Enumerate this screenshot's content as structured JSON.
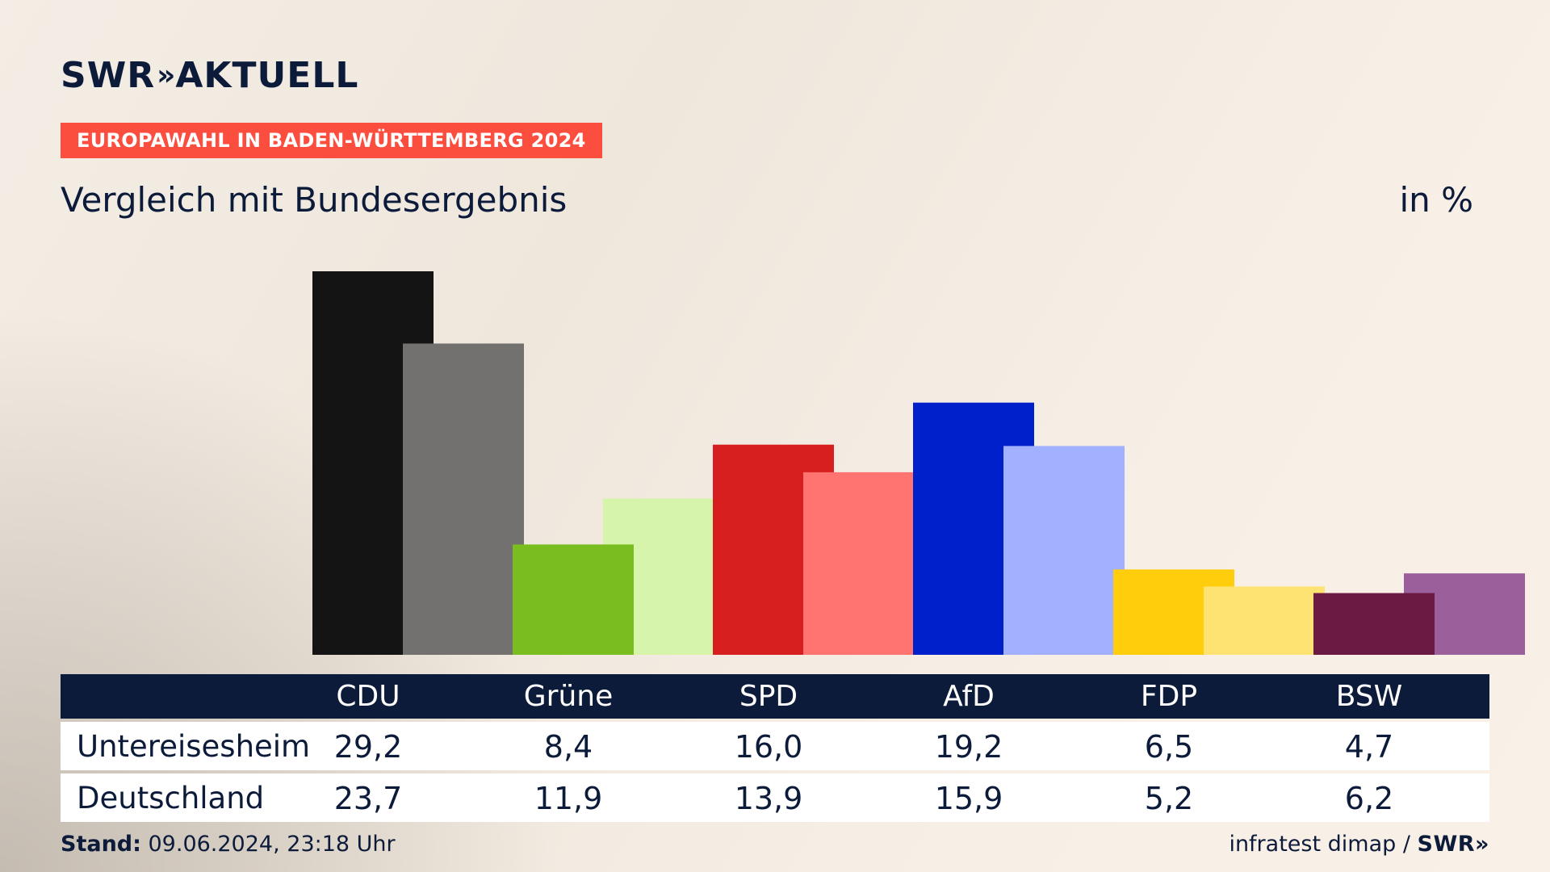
{
  "header": {
    "logo_swr": "SWR",
    "logo_chevron": "»",
    "logo_aktuell": "AKTUELL",
    "tag": "EUROPAWAHL IN BADEN-WÜRTTEMBERG 2024",
    "subtitle": "Vergleich mit Bundesergebnis",
    "unit": "in %"
  },
  "chart_data": {
    "type": "bar",
    "categories": [
      "CDU",
      "Grüne",
      "SPD",
      "AfD",
      "FDP",
      "BSW"
    ],
    "series": [
      {
        "name": "Untereisesheim",
        "values": [
          29.2,
          8.4,
          16.0,
          19.2,
          6.5,
          4.7
        ]
      },
      {
        "name": "Deutschland",
        "values": [
          23.7,
          11.9,
          13.9,
          15.9,
          5.2,
          6.2
        ]
      }
    ],
    "value_labels": [
      [
        "29,2",
        "8,4",
        "16,0",
        "19,2",
        "6,5",
        "4,7"
      ],
      [
        "23,7",
        "11,9",
        "13,9",
        "15,9",
        "5,2",
        "6,2"
      ]
    ],
    "colors_primary": [
      "#141414",
      "#79bd1e",
      "#d81f1f",
      "#0020cb",
      "#ffcd0c",
      "#6b1a43"
    ],
    "colors_secondary": [
      "#727170",
      "#d7f5aa",
      "#ff7470",
      "#a1b0ff",
      "#ffe372",
      "#9b5f9b"
    ],
    "ylim": [
      0,
      30
    ]
  },
  "footer": {
    "stand_label": "Stand:",
    "stand_value": " 09.06.2024, 23:18 Uhr",
    "source": "infratest dimap / ",
    "brand": "SWR»"
  },
  "colors": {
    "navy": "#0d1b3a",
    "tag_red": "#fb4e3f"
  }
}
